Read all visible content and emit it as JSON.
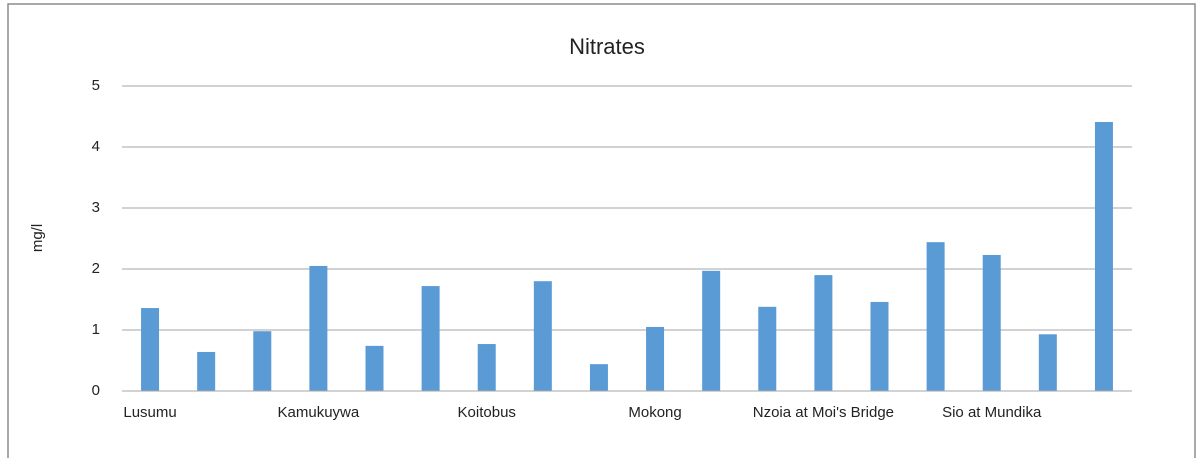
{
  "chart_data": {
    "type": "bar",
    "title": "Nitrates",
    "y_label": "mg/l",
    "categories": [
      "Lusumu",
      null,
      null,
      "Kamukuywa",
      null,
      null,
      "Koitobus",
      null,
      null,
      "Mokong",
      null,
      null,
      "Nzoia at Moi's Bridge",
      null,
      null,
      "Sio at Mundika",
      null,
      null
    ],
    "values": [
      1.36,
      0.64,
      0.98,
      2.05,
      0.74,
      1.72,
      0.77,
      1.8,
      0.44,
      1.05,
      1.97,
      1.38,
      1.9,
      1.46,
      2.44,
      2.23,
      0.93,
      4.41
    ],
    "color": "#5b9bd5",
    "ylim": [
      0,
      5
    ],
    "yticks": [
      0,
      1,
      2,
      3,
      4,
      5
    ],
    "grid": true
  }
}
